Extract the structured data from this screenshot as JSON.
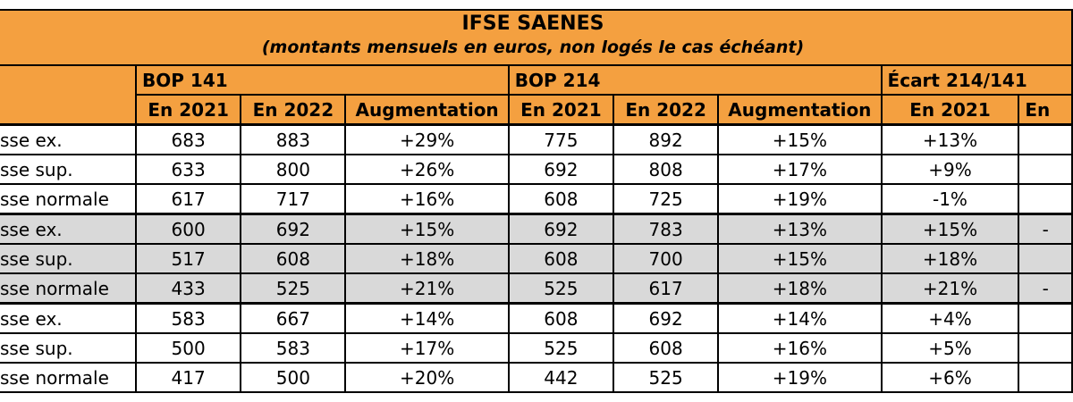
{
  "title": "IFSE SAENES",
  "subtitle": "(montants mensuels en euros, non logés le cas échéant)",
  "groups": {
    "bop141": "BOP 141",
    "bop214": "BOP 214",
    "ecart": "Écart 214/141"
  },
  "subheaders": {
    "y2021": "En 2021",
    "y2022": "En 2022",
    "aug": "Augmentation",
    "ecart2021": "En 2021",
    "ecart_next": "En"
  },
  "rows": [
    {
      "label": "sse ex.",
      "b141_2021": "683",
      "b141_2022": "883",
      "b141_aug": "+29%",
      "b214_2021": "775",
      "b214_2022": "892",
      "b214_aug": "+15%",
      "ecart_2021": "+13%",
      "ecart_next": ""
    },
    {
      "label": "sse sup.",
      "b141_2021": "633",
      "b141_2022": "800",
      "b141_aug": "+26%",
      "b214_2021": "692",
      "b214_2022": "808",
      "b214_aug": "+17%",
      "ecart_2021": "+9%",
      "ecart_next": ""
    },
    {
      "label": "sse normale",
      "b141_2021": "617",
      "b141_2022": "717",
      "b141_aug": "+16%",
      "b214_2021": "608",
      "b214_2022": "725",
      "b214_aug": "+19%",
      "ecart_2021": "-1%",
      "ecart_next": ""
    },
    {
      "label": "sse ex.",
      "b141_2021": "600",
      "b141_2022": "692",
      "b141_aug": "+15%",
      "b214_2021": "692",
      "b214_2022": "783",
      "b214_aug": "+13%",
      "ecart_2021": "+15%",
      "ecart_next": "-"
    },
    {
      "label": "sse sup.",
      "b141_2021": "517",
      "b141_2022": "608",
      "b141_aug": "+18%",
      "b214_2021": "608",
      "b214_2022": "700",
      "b214_aug": "+15%",
      "ecart_2021": "+18%",
      "ecart_next": ""
    },
    {
      "label": "sse normale",
      "b141_2021": "433",
      "b141_2022": "525",
      "b141_aug": "+21%",
      "b214_2021": "525",
      "b214_2022": "617",
      "b214_aug": "+18%",
      "ecart_2021": "+21%",
      "ecart_next": "-"
    },
    {
      "label": "sse ex.",
      "b141_2021": "583",
      "b141_2022": "667",
      "b141_aug": "+14%",
      "b214_2021": "608",
      "b214_2022": "692",
      "b214_aug": "+14%",
      "ecart_2021": "+4%",
      "ecart_next": ""
    },
    {
      "label": "sse sup.",
      "b141_2021": "500",
      "b141_2022": "583",
      "b141_aug": "+17%",
      "b214_2021": "525",
      "b214_2022": "608",
      "b214_aug": "+16%",
      "ecart_2021": "+5%",
      "ecart_next": ""
    },
    {
      "label": "sse normale",
      "b141_2021": "417",
      "b141_2022": "500",
      "b141_aug": "+20%",
      "b214_2021": "442",
      "b214_2022": "525",
      "b214_aug": "+19%",
      "ecart_2021": "+6%",
      "ecart_next": ""
    }
  ],
  "colors": {
    "header_bg": "#f4a040",
    "shaded_row_bg": "#d9d9d9",
    "border": "#000000"
  }
}
